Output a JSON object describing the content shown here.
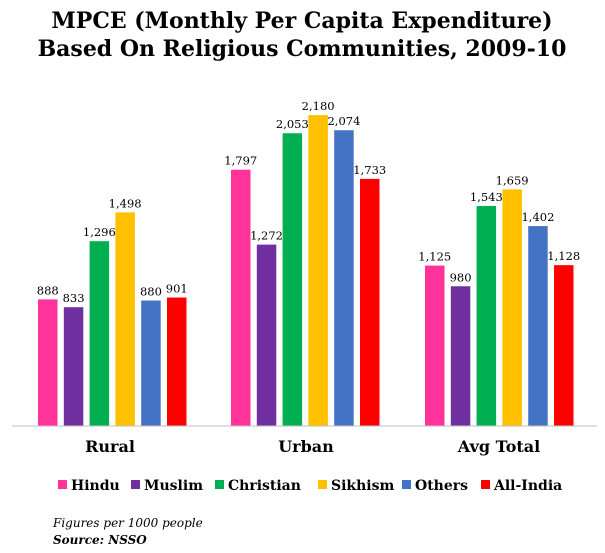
{
  "chart_data": {
    "type": "bar",
    "title": "MPCE (Monthly Per Capita Expenditure) Based On Religious Communities, 2009-10",
    "title_lines": [
      "MPCE (Monthly Per Capita Expenditure)",
      "Based On Religious Communities, 2009-10"
    ],
    "categories": [
      "Rural",
      "Urban",
      "Avg Total"
    ],
    "series": [
      {
        "name": "Hindu",
        "color": "#ff3399",
        "values": [
          888,
          1797,
          1125
        ],
        "labels": [
          "888",
          "1,797",
          "1,125"
        ]
      },
      {
        "name": "Muslim",
        "color": "#7030a0",
        "values": [
          833,
          1272,
          980
        ],
        "labels": [
          "833",
          "1,272",
          "980"
        ]
      },
      {
        "name": "Christian",
        "color": "#00b050",
        "values": [
          1296,
          2053,
          1543
        ],
        "labels": [
          "1,296",
          "2,053",
          "1,543"
        ]
      },
      {
        "name": "Sikhism",
        "color": "#ffc000",
        "values": [
          1498,
          2180,
          1659
        ],
        "labels": [
          "1,498",
          "2,180",
          "1,659"
        ]
      },
      {
        "name": "Others",
        "color": "#4472c4",
        "values": [
          880,
          2074,
          1402
        ],
        "labels": [
          "880",
          "2,074",
          "1,402"
        ]
      },
      {
        "name": "All-India",
        "color": "#ff0000",
        "values": [
          901,
          1733,
          1128
        ],
        "labels": [
          "901",
          "1,733",
          "1,128"
        ]
      }
    ],
    "ylim": [
      0,
      2250
    ],
    "grid": false,
    "legend": "bottom",
    "xlabel": "",
    "ylabel": ""
  },
  "notes": {
    "figures": "Figures per 1000 people",
    "source": "Source: NSSO"
  }
}
